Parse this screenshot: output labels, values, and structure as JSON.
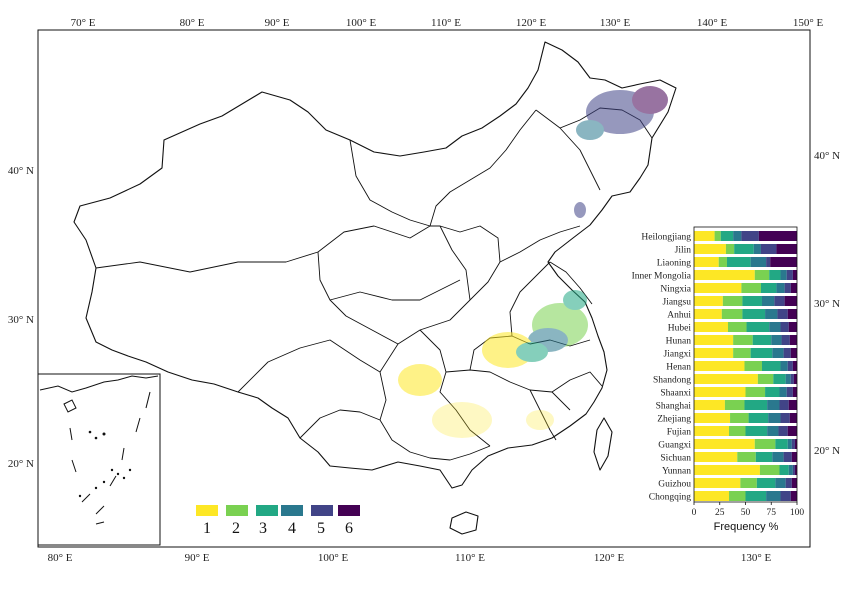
{
  "map": {
    "top_lon_ticks": [
      "70° E",
      "80° E",
      "90° E",
      "100° E",
      "110° E",
      "120° E",
      "130° E",
      "140° E",
      "150° E"
    ],
    "bottom_lon_ticks": [
      "80° E",
      "90° E",
      "100° E",
      "110° E",
      "120° E",
      "130° E"
    ],
    "left_lat_ticks": [
      "40° N",
      "30° N",
      "20° N"
    ],
    "right_lat_ticks": [
      "40° N",
      "30° N",
      "20° N"
    ],
    "legend": {
      "classes": [
        "1",
        "2",
        "3",
        "4",
        "5",
        "6"
      ],
      "colors": [
        "#fde725",
        "#7ad151",
        "#22a884",
        "#2a788e",
        "#414487",
        "#440154"
      ]
    }
  },
  "chart_data": {
    "type": "bar",
    "orientation": "horizontal",
    "stacked": "percent",
    "categories": [
      "Heilongjiang",
      "Jilin",
      "Liaoning",
      "Inner Mongolia",
      "Ningxia",
      "Jiangsu",
      "Anhui",
      "Hubei",
      "Hunan",
      "Jiangxi",
      "Henan",
      "Shandong",
      "Shaanxi",
      "Shanghai",
      "Zhejiang",
      "Fujian",
      "Guangxi",
      "Sichuan",
      "Yunnan",
      "Guizhou",
      "Chongqing"
    ],
    "series": [
      {
        "values": [
          20,
          31,
          24,
          59,
          46,
          28,
          27,
          33,
          38,
          38,
          49,
          62,
          50,
          30,
          35,
          34,
          59,
          42,
          64,
          45,
          34
        ]
      },
      {
        "values": [
          6,
          8,
          8,
          14,
          19,
          19,
          20,
          18,
          19,
          17,
          17,
          15,
          19,
          19,
          18,
          16,
          20,
          18,
          19,
          16,
          16
        ]
      },
      {
        "values": [
          12,
          19,
          23,
          11,
          15,
          19,
          22,
          22,
          18,
          21,
          18,
          12,
          14,
          22,
          19,
          21,
          12,
          16,
          9,
          18,
          20
        ]
      },
      {
        "values": [
          8,
          7,
          15,
          6,
          8,
          12,
          12,
          11,
          10,
          11,
          7,
          5,
          7,
          12,
          12,
          11,
          4,
          11,
          4,
          10,
          14
        ]
      },
      {
        "values": [
          17,
          15,
          4,
          6,
          6,
          10,
          10,
          8,
          8,
          7,
          5,
          3,
          6,
          9,
          9,
          9,
          3,
          8,
          2,
          6,
          10
        ]
      },
      {
        "values": [
          37,
          20,
          26,
          4,
          6,
          12,
          9,
          8,
          7,
          6,
          4,
          3,
          4,
          8,
          7,
          9,
          2,
          5,
          2,
          5,
          6
        ]
      }
    ],
    "xlabel": "Frequency %",
    "xlim": [
      0,
      100
    ],
    "x_ticks": [
      "0",
      "25",
      "50",
      "75",
      "100"
    ],
    "grid": false
  }
}
